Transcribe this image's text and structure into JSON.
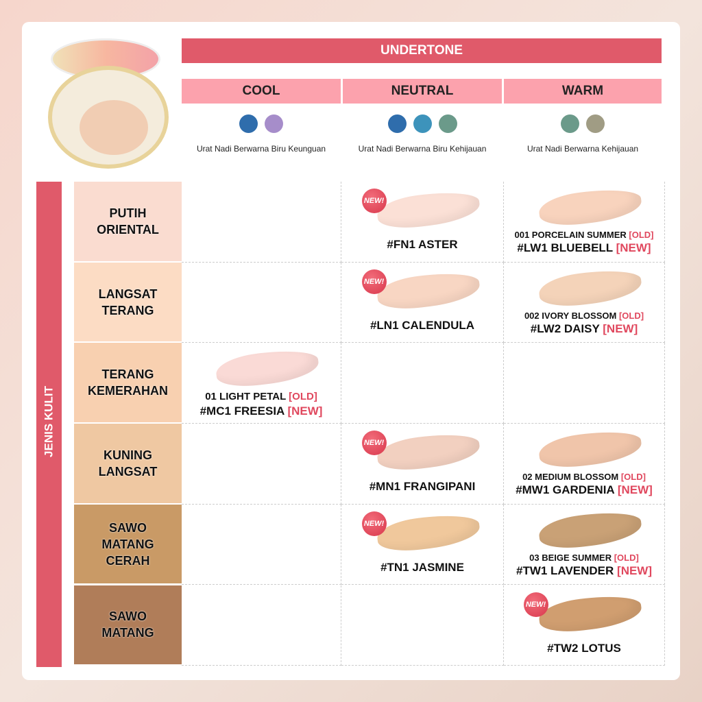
{
  "header": {
    "title": "UNDERTONE"
  },
  "columns": [
    {
      "name": "COOL",
      "dots": [
        "#2f6dac",
        "#a68dca"
      ],
      "note": "Urat Nadi Berwarna Biru Keunguan"
    },
    {
      "name": "NEUTRAL",
      "dots": [
        "#2f6dac",
        "#3d93bb",
        "#6b9a8a"
      ],
      "note": "Urat Nadi Berwarna Biru Kehijauan"
    },
    {
      "name": "WARM",
      "dots": [
        "#6b9a8a",
        "#a09c84"
      ],
      "note": "Urat Nadi Berwarna Kehijauan"
    }
  ],
  "side_label": "JENIS KULIT",
  "rows": [
    {
      "label": "PUTIH\nORIENTAL",
      "color": "#fadcd0",
      "cells": [
        null,
        {
          "badge": "NEW!",
          "name": "#FN1 ASTER",
          "swatch": "#fbe0d6"
        },
        {
          "old": "001 PORCELAIN SUMMER",
          "old_tag": "[OLD]",
          "name": "#LW1 BLUEBELL",
          "new_tag": "[NEW]",
          "swatch": "#f8d3bd"
        }
      ]
    },
    {
      "label": "LANGSAT\nTERANG",
      "color": "#fcdcc4",
      "cells": [
        null,
        {
          "badge": "NEW!",
          "name": "#LN1 CALENDULA",
          "swatch": "#f8d6c3"
        },
        {
          "old": "002 IVORY BLOSSOM",
          "old_tag": "[OLD]",
          "name": "#LW2 DAISY",
          "new_tag": "[NEW]",
          "swatch": "#f4d3b9"
        }
      ]
    },
    {
      "label": "TERANG\nKEMERAHAN",
      "color": "#f8d0b0",
      "cells": [
        {
          "old": "01 LIGHT PETAL",
          "old_tag": "[OLD]",
          "name": "#MC1 FREESIA",
          "new_tag": "[NEW]",
          "swatch": "#fadad6"
        },
        null,
        null
      ]
    },
    {
      "label": "KUNING\nLANGSAT",
      "color": "#efc8a2",
      "cells": [
        null,
        {
          "badge": "NEW!",
          "name": "#MN1 FRANGIPANI",
          "swatch": "#f2d0c0"
        },
        {
          "old": "02 MEDIUM BLOSSOM",
          "old_tag": "[OLD]",
          "name": "#MW1 GARDENIA",
          "new_tag": "[NEW]",
          "swatch": "#f0c5aa"
        }
      ]
    },
    {
      "label": "SAWO\nMATANG\nCERAH",
      "color": "#c99a66",
      "cells": [
        null,
        {
          "badge": "NEW!",
          "name": "#TN1 JASMINE",
          "swatch": "#f0c89c"
        },
        {
          "old": "03 BEIGE SUMMER",
          "old_tag": "[OLD]",
          "name": "#TW1 LAVENDER",
          "new_tag": "[NEW]",
          "swatch": "#c9a176"
        }
      ]
    },
    {
      "label": "SAWO\nMATANG",
      "color": "#b07d59",
      "cells": [
        null,
        null,
        {
          "badge": "NEW!",
          "name": "#TW2 LOTUS",
          "swatch": "#d09e70"
        }
      ]
    }
  ]
}
